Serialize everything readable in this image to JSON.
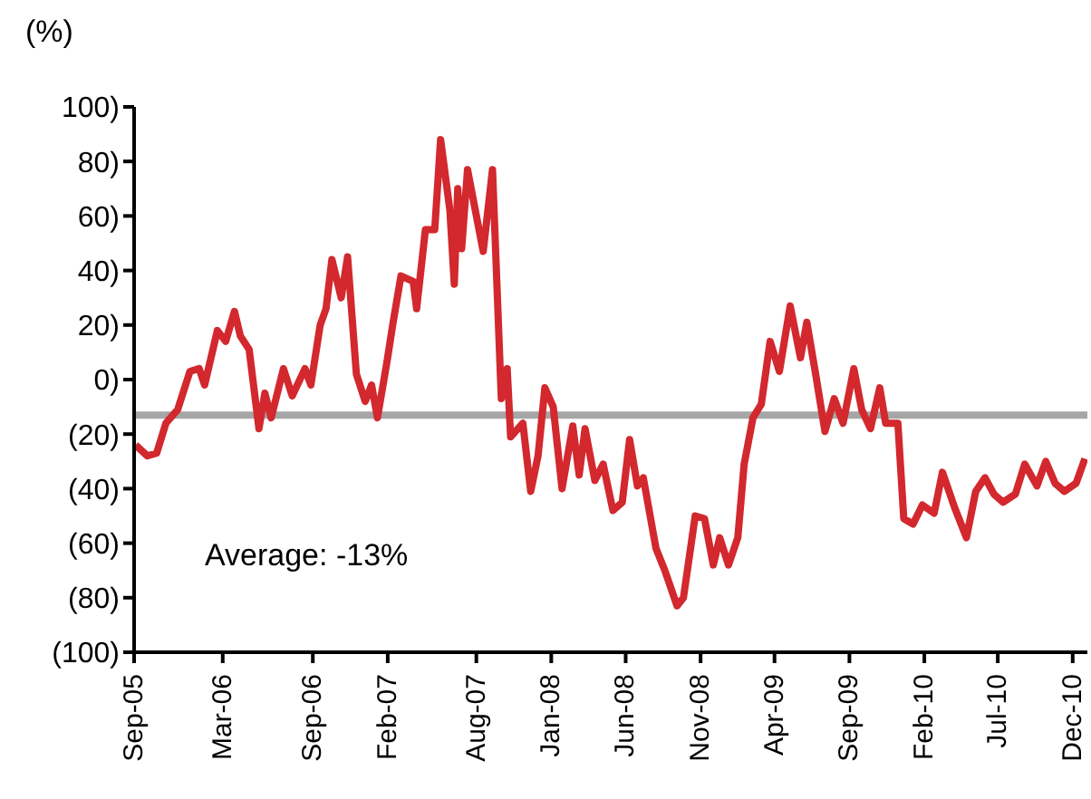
{
  "chart_data": {
    "type": "line",
    "ylabel": "(%)",
    "x": [
      "2005-09-04",
      "2005-09-28",
      "2005-10-17",
      "2005-11-05",
      "2005-11-29",
      "2005-12-24",
      "2006-01-12",
      "2006-01-23",
      "2006-02-18",
      "2006-03-07",
      "2006-03-25",
      "2006-04-06",
      "2006-04-24",
      "2006-05-14",
      "2006-05-26",
      "2006-06-08",
      "2006-07-03",
      "2006-07-21",
      "2006-08-16",
      "2006-08-28",
      "2006-09-16",
      "2006-09-28",
      "2006-10-10",
      "2006-10-29",
      "2006-11-11",
      "2006-11-29",
      "2006-12-17",
      "2006-12-30",
      "2007-01-11",
      "2007-01-30",
      "2007-02-12",
      "2007-02-28",
      "2007-03-25",
      "2007-04-01",
      "2007-04-19",
      "2007-05-08",
      "2007-05-20",
      "2007-06-08",
      "2007-06-17",
      "2007-06-24",
      "2007-07-02",
      "2007-07-14",
      "2007-08-15",
      "2007-09-03",
      "2007-09-21",
      "2007-10-03",
      "2007-10-10",
      "2007-11-04",
      "2007-11-20",
      "2007-12-05",
      "2007-12-19",
      "2008-01-05",
      "2008-01-23",
      "2008-02-14",
      "2008-02-27",
      "2008-03-10",
      "2008-03-30",
      "2008-04-16",
      "2008-05-06",
      "2008-05-25",
      "2008-06-09",
      "2008-06-25",
      "2008-07-07",
      "2008-08-02",
      "2008-08-20",
      "2008-09-14",
      "2008-09-27",
      "2008-10-21",
      "2008-11-09",
      "2008-11-27",
      "2008-12-10",
      "2008-12-28",
      "2009-01-16",
      "2009-01-29",
      "2009-02-16",
      "2009-03-05",
      "2009-03-23",
      "2009-04-11",
      "2009-05-03",
      "2009-05-24",
      "2009-06-06",
      "2009-06-24",
      "2009-07-13",
      "2009-08-01",
      "2009-08-19",
      "2009-09-10",
      "2009-09-26",
      "2009-10-14",
      "2009-11-02",
      "2009-11-14",
      "2009-12-09",
      "2009-12-21",
      "2010-01-09",
      "2010-01-28",
      "2010-02-21",
      "2010-03-10",
      "2010-04-04",
      "2010-04-28",
      "2010-05-17",
      "2010-06-05",
      "2010-06-23",
      "2010-07-12",
      "2010-08-06",
      "2010-08-25",
      "2010-09-19",
      "2010-10-07",
      "2010-10-26",
      "2010-11-14",
      "2010-12-08",
      "2010-12-26"
    ],
    "series": [
      {
        "color": "#d2282e",
        "values": [
          -24,
          -28,
          -27,
          -16,
          -11,
          3,
          4,
          -2,
          18,
          14,
          25,
          16,
          11,
          -18,
          -5,
          -14,
          4,
          -6,
          4,
          -2,
          20,
          26,
          44,
          30,
          45,
          2,
          -8,
          -2,
          -14,
          6,
          21,
          38,
          36,
          26,
          55,
          55,
          88,
          62,
          35,
          70,
          48,
          77,
          47,
          77,
          -7,
          4,
          -21,
          -16,
          -41,
          -28,
          -3,
          -10,
          -40,
          -17,
          -35,
          -18,
          -37,
          -31,
          -48,
          -45,
          -22,
          -39,
          -36,
          -62,
          -70,
          -83,
          -80,
          -50,
          -51,
          -68,
          -58,
          -68,
          -58,
          -31,
          -14,
          -9,
          14,
          3,
          27,
          8,
          21,
          2,
          -19,
          -7,
          -16,
          4,
          -11,
          -18,
          -3,
          -16,
          -16,
          -51,
          -53,
          -46,
          -49,
          -34,
          -47,
          -58,
          -41,
          -36,
          -42,
          -45,
          -42,
          -31,
          -39,
          -30,
          -38,
          -41,
          -38,
          -29
        ]
      }
    ],
    "xlim": [
      "2005-09-01",
      "2010-12-31"
    ],
    "xticks": [
      {
        "value": "2005-09-01",
        "label": "Sep-05"
      },
      {
        "value": "2006-03-01",
        "label": "Mar-06"
      },
      {
        "value": "2006-09-01",
        "label": "Sep-06"
      },
      {
        "value": "2007-02-01",
        "label": "Feb-07"
      },
      {
        "value": "2007-08-01",
        "label": "Aug-07"
      },
      {
        "value": "2008-01-01",
        "label": "Jan-08"
      },
      {
        "value": "2008-06-01",
        "label": "Jun-08"
      },
      {
        "value": "2008-11-01",
        "label": "Nov-08"
      },
      {
        "value": "2009-04-01",
        "label": "Apr-09"
      },
      {
        "value": "2009-09-01",
        "label": "Sep-09"
      },
      {
        "value": "2010-02-01",
        "label": "Feb-10"
      },
      {
        "value": "2010-07-01",
        "label": "Jul-10"
      },
      {
        "value": "2010-12-01",
        "label": "Dec-10"
      }
    ],
    "ylim": [
      -100,
      100
    ],
    "yticks": [
      {
        "value": 100,
        "label": "100)"
      },
      {
        "value": 80,
        "label": "80)"
      },
      {
        "value": 60,
        "label": "60)"
      },
      {
        "value": 40,
        "label": "40)"
      },
      {
        "value": 20,
        "label": "20)"
      },
      {
        "value": 0,
        "label": "0)"
      },
      {
        "value": -20,
        "label": "(20)"
      },
      {
        "value": -40,
        "label": "(40)"
      },
      {
        "value": -60,
        "label": "(60)"
      },
      {
        "value": -80,
        "label": "(80)"
      },
      {
        "value": -100,
        "label": "(100)"
      }
    ],
    "ref_lines": [
      {
        "axis": "y",
        "value": -13,
        "color": "#a6a6a6"
      }
    ],
    "annotations": [
      "Average: -13%"
    ],
    "grid": false,
    "legend": false,
    "marker": "none",
    "line_style": "solid"
  }
}
